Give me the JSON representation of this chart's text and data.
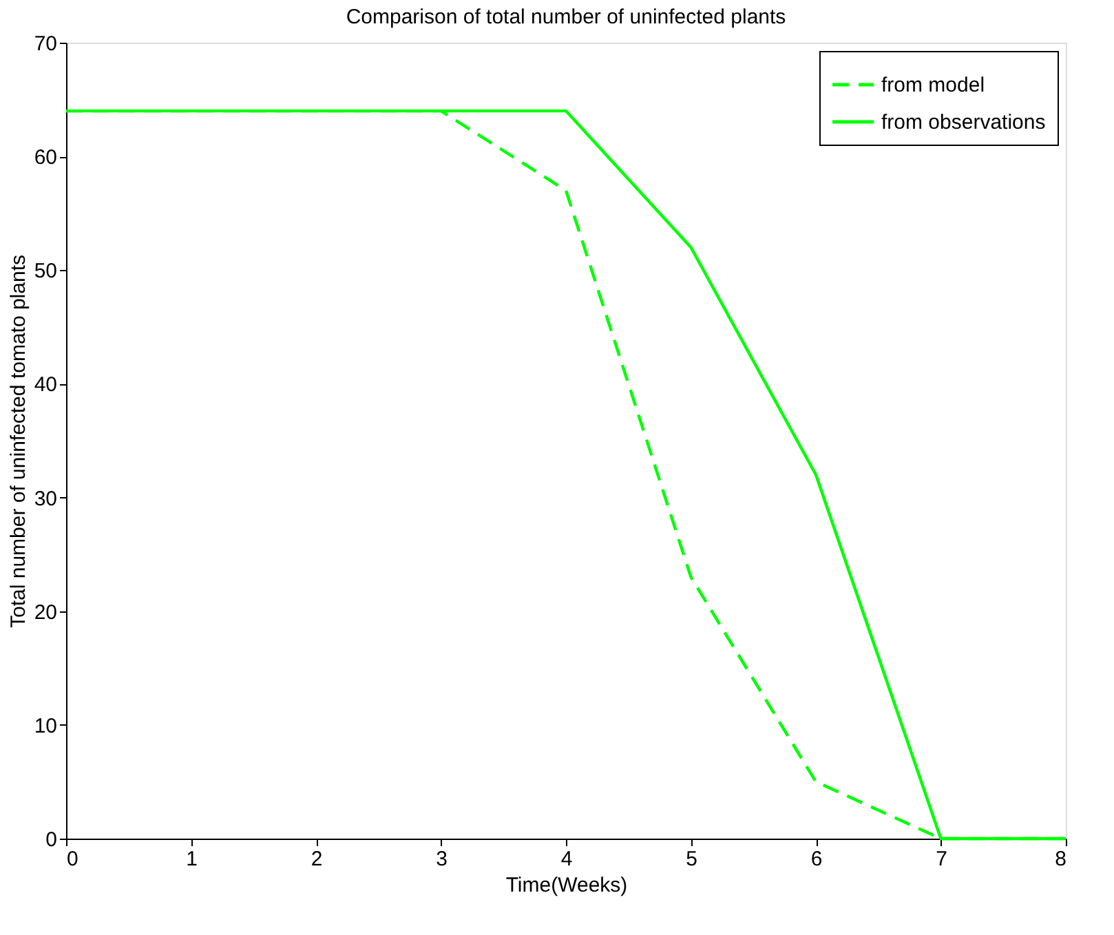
{
  "chart_data": {
    "type": "line",
    "title": "Comparison of total number of uninfected plants",
    "xlabel": "Time(Weeks)",
    "ylabel": "Total number of uninfected tomato plants",
    "x": [
      0,
      1,
      2,
      3,
      4,
      5,
      6,
      7,
      8
    ],
    "series": [
      {
        "name": "from model",
        "color": "#00ff00",
        "line_style": "dashed",
        "values": [
          64,
          64,
          64,
          64,
          57,
          23,
          5,
          0,
          0
        ]
      },
      {
        "name": "from observations",
        "color": "#00ff00",
        "line_style": "solid",
        "values": [
          64,
          64,
          64,
          64,
          64,
          52,
          32,
          0,
          0
        ]
      }
    ],
    "xlim": [
      0,
      8
    ],
    "xticks": [
      0,
      1,
      2,
      3,
      4,
      5,
      6,
      7,
      8
    ],
    "ylim": [
      0,
      70
    ],
    "yticks": [
      0,
      10,
      20,
      30,
      40,
      50,
      60,
      70
    ],
    "grid": false,
    "legend": "top right",
    "marker": "none"
  }
}
